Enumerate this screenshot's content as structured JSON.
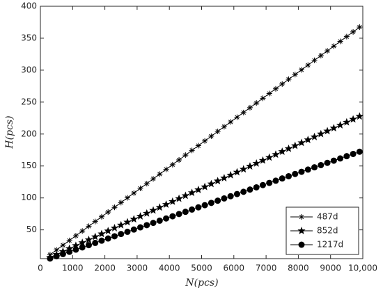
{
  "chart_data": {
    "type": "line",
    "x_label": "N(pcs)",
    "y_label": "H(pcs)",
    "xlim": [
      0,
      10000
    ],
    "ylim": [
      5,
      400
    ],
    "xticks": [
      0,
      1000,
      2000,
      3000,
      4000,
      5000,
      6000,
      7000,
      8000,
      9000,
      {
        "value": 10000,
        "label": "10,000"
      }
    ],
    "yticks": [
      50,
      100,
      150,
      200,
      250,
      300,
      350,
      400
    ],
    "legend": "lower right",
    "x": [
      300,
      500,
      700,
      900,
      1100,
      1300,
      1500,
      1700,
      1900,
      2100,
      2300,
      2500,
      2700,
      2900,
      3100,
      3300,
      3500,
      3700,
      3900,
      4100,
      4300,
      4500,
      4700,
      4900,
      5100,
      5300,
      5500,
      5700,
      5900,
      6100,
      6300,
      6500,
      6700,
      6900,
      7100,
      7300,
      7500,
      7700,
      7900,
      8100,
      8300,
      8500,
      8700,
      8900,
      9100,
      9300,
      9500,
      9700,
      9900
    ],
    "series": [
      {
        "name": "487d",
        "color": "#000000",
        "marker": "asterisk",
        "values": [
          11.1,
          18.6,
          26.0,
          33.4,
          40.8,
          48.2,
          55.7,
          63.1,
          70.5,
          77.9,
          85.3,
          92.8,
          100.2,
          107.6,
          115.0,
          122.4,
          129.9,
          137.3,
          144.7,
          152.1,
          159.5,
          167.0,
          174.4,
          181.8,
          189.2,
          196.6,
          204.1,
          211.5,
          218.9,
          226.3,
          233.7,
          241.2,
          248.6,
          256.0,
          263.4,
          270.8,
          278.3,
          285.7,
          293.1,
          300.5,
          307.9,
          315.4,
          322.8,
          330.2,
          337.6,
          345.0,
          352.5,
          359.9,
          367.3
        ]
      },
      {
        "name": "852d",
        "color": "#000000",
        "marker": "star",
        "values": [
          6.9,
          11.5,
          16.1,
          20.7,
          25.3,
          29.9,
          34.5,
          39.1,
          43.7,
          48.3,
          52.9,
          57.5,
          62.1,
          66.7,
          71.3,
          75.9,
          80.5,
          85.1,
          89.7,
          94.3,
          98.9,
          103.5,
          108.1,
          112.7,
          117.3,
          121.9,
          126.5,
          131.1,
          135.7,
          140.3,
          144.9,
          149.5,
          154.1,
          158.7,
          163.3,
          167.9,
          172.5,
          177.1,
          181.7,
          186.3,
          190.9,
          195.5,
          200.1,
          204.7,
          209.3,
          213.9,
          218.5,
          223.1,
          227.7
        ]
      },
      {
        "name": "1217d",
        "color": "#000000",
        "marker": "circle",
        "values": [
          5.2,
          8.7,
          12.2,
          15.7,
          19.1,
          22.6,
          26.1,
          29.6,
          33.1,
          36.5,
          40.0,
          43.5,
          47.0,
          50.5,
          53.9,
          57.4,
          60.9,
          64.4,
          67.9,
          71.3,
          74.8,
          78.3,
          81.8,
          85.3,
          88.7,
          92.2,
          95.7,
          99.2,
          102.7,
          106.1,
          109.6,
          113.1,
          116.6,
          120.1,
          123.5,
          127.0,
          130.5,
          134.0,
          137.5,
          140.9,
          144.4,
          147.9,
          151.4,
          154.9,
          158.3,
          161.8,
          165.3,
          168.8,
          172.3
        ]
      }
    ]
  }
}
